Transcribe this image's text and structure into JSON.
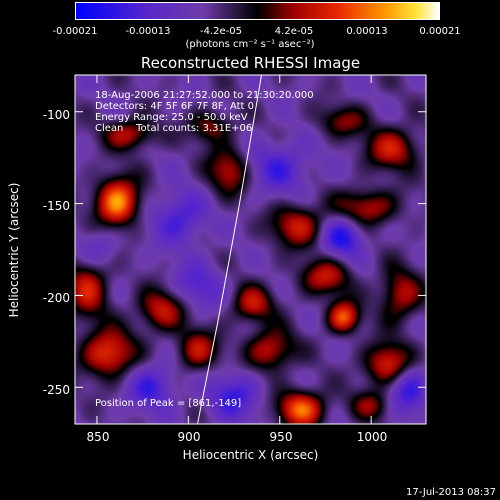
{
  "colorbar": {
    "tick_labels": [
      "-0.00021",
      "-0.00013",
      "-4.2e-05",
      "4.2e-05",
      "0.00013",
      "0.00021"
    ],
    "unit_label": "(photons cm⁻² s⁻¹ asec⁻²)",
    "range": [
      -0.00021,
      0.00021
    ]
  },
  "chart_data": {
    "type": "heatmap",
    "title": "Reconstructed RHESSI Image",
    "xlabel": "Heliocentric X (arcsec)",
    "ylabel": "Heliocentric Y (arcsec)",
    "xlim": [
      838,
      1030
    ],
    "ylim": [
      -270,
      -80
    ],
    "x_tick_labels": [
      "850",
      "900",
      "950",
      "1000"
    ],
    "x_ticks": [
      850,
      900,
      950,
      1000
    ],
    "y_tick_labels": [
      "-100",
      "-150",
      "-200",
      "-250"
    ],
    "y_ticks": [
      -100,
      -150,
      -200,
      -250
    ],
    "annotations": [
      "18-Aug-2006 21:27:52.000 to 21:30:20.000",
      "Detectors: 4F 5F 6F 7F 8F, Att 0",
      "Energy Range: 25.0 - 50.0 keV",
      "Clean    Total counts: 3.31E+06"
    ],
    "peak_label": "Position of Peak = [861,-149]",
    "limb_curve": [
      [
        940,
        -80
      ],
      [
        928,
        -150
      ],
      [
        916,
        -215
      ],
      [
        905,
        -270
      ]
    ],
    "blobs": [
      {
        "x": 861,
        "y": -149,
        "v": 1.0,
        "sx": 8,
        "sy": 9
      },
      {
        "x": 868,
        "y": -112,
        "v": 0.55,
        "sx": 10,
        "sy": 6
      },
      {
        "x": 845,
        "y": -195,
        "v": 0.6,
        "sx": 8,
        "sy": 12
      },
      {
        "x": 856,
        "y": -232,
        "v": 0.75,
        "sx": 10,
        "sy": 9
      },
      {
        "x": 885,
        "y": -208,
        "v": 0.6,
        "sx": 9,
        "sy": 8
      },
      {
        "x": 905,
        "y": -230,
        "v": 0.55,
        "sx": 8,
        "sy": 8
      },
      {
        "x": 935,
        "y": -205,
        "v": 0.55,
        "sx": 8,
        "sy": 7
      },
      {
        "x": 945,
        "y": -230,
        "v": 0.6,
        "sx": 9,
        "sy": 8
      },
      {
        "x": 962,
        "y": -262,
        "v": 0.85,
        "sx": 9,
        "sy": 7
      },
      {
        "x": 975,
        "y": -190,
        "v": 0.55,
        "sx": 10,
        "sy": 7
      },
      {
        "x": 985,
        "y": -212,
        "v": 0.8,
        "sx": 6,
        "sy": 6
      },
      {
        "x": 960,
        "y": -162,
        "v": 0.6,
        "sx": 10,
        "sy": 8
      },
      {
        "x": 998,
        "y": -152,
        "v": 0.55,
        "sx": 12,
        "sy": 7
      },
      {
        "x": 1012,
        "y": -120,
        "v": 0.6,
        "sx": 10,
        "sy": 8
      },
      {
        "x": 1016,
        "y": -200,
        "v": 0.55,
        "sx": 8,
        "sy": 10
      },
      {
        "x": 1010,
        "y": -238,
        "v": 0.75,
        "sx": 9,
        "sy": 8
      },
      {
        "x": 922,
        "y": -132,
        "v": 0.55,
        "sx": 8,
        "sy": 9
      },
      {
        "x": 912,
        "y": -108,
        "v": 0.45,
        "sx": 8,
        "sy": 6
      },
      {
        "x": 985,
        "y": -105,
        "v": 0.4,
        "sx": 10,
        "sy": 6
      },
      {
        "x": 895,
        "y": -158,
        "v": -0.45,
        "sx": 10,
        "sy": 10
      },
      {
        "x": 950,
        "y": -130,
        "v": -0.4,
        "sx": 12,
        "sy": 10
      },
      {
        "x": 985,
        "y": -168,
        "v": -0.55,
        "sx": 8,
        "sy": 8
      },
      {
        "x": 1020,
        "y": -250,
        "v": -0.5,
        "sx": 8,
        "sy": 10
      },
      {
        "x": 880,
        "y": -250,
        "v": -0.45,
        "sx": 9,
        "sy": 9
      },
      {
        "x": 925,
        "y": -255,
        "v": -0.45,
        "sx": 10,
        "sy": 9
      },
      {
        "x": 905,
        "y": -195,
        "v": -0.35,
        "sx": 10,
        "sy": 9
      },
      {
        "x": 850,
        "y": -175,
        "v": -0.3,
        "sx": 8,
        "sy": 8
      },
      {
        "x": 1000,
        "y": -260,
        "v": 0.4,
        "sx": 8,
        "sy": 6
      }
    ]
  },
  "footer": {
    "timestamp": "17-Jul-2013 08:37"
  }
}
